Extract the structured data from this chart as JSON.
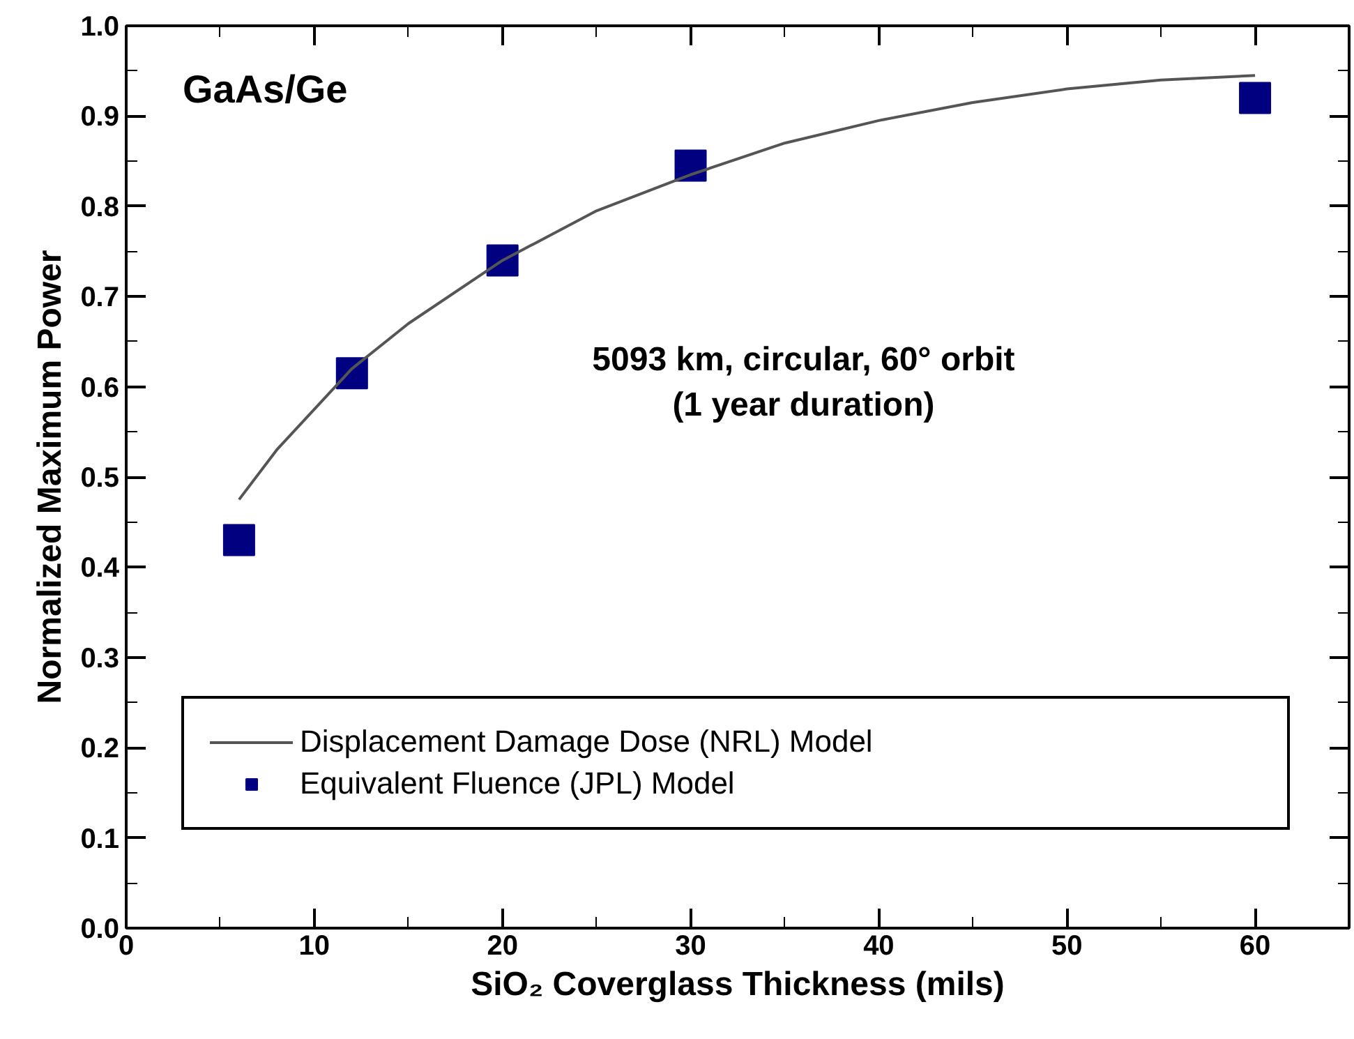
{
  "chart_data": {
    "type": "scatter",
    "xlabel": "SiO₂ Coverglass Thickness (mils)",
    "ylabel": "Normalized Maximum Power",
    "xlim": [
      0,
      65
    ],
    "xticks": [
      0,
      10,
      20,
      30,
      40,
      50,
      60
    ],
    "ylim": [
      0,
      1.0
    ],
    "yticks": [
      {
        "value": 0,
        "label": "0.0"
      },
      0.1,
      0.2,
      0.3,
      0.4,
      0.5,
      0.6,
      0.7,
      0.8,
      0.9,
      {
        "value": 1,
        "label": "1.0"
      }
    ],
    "grid": false,
    "legend": "bottom",
    "annotations": [
      "GaAs/Ge",
      "5093 km, circular, 60° orbit\n(1 year duration)"
    ],
    "series": [
      {
        "name": "Displacement Damage Dose (NRL) Model",
        "type": "line",
        "color": "#555555",
        "marker": "none",
        "line_style": "solid",
        "x": [
          6,
          8,
          10,
          12,
          15,
          20,
          25,
          30,
          35,
          40,
          45,
          50,
          55,
          60
        ],
        "values": [
          0.475,
          0.53,
          0.575,
          0.62,
          0.67,
          0.74,
          0.795,
          0.835,
          0.87,
          0.895,
          0.915,
          0.93,
          0.94,
          0.945
        ]
      },
      {
        "name": "Equivalent Fluence (JPL) Model",
        "color": "#000080",
        "marker": "square",
        "x": [
          6,
          12,
          20,
          30,
          60
        ],
        "values": [
          0.43,
          0.615,
          0.74,
          0.845,
          0.92
        ]
      }
    ]
  }
}
